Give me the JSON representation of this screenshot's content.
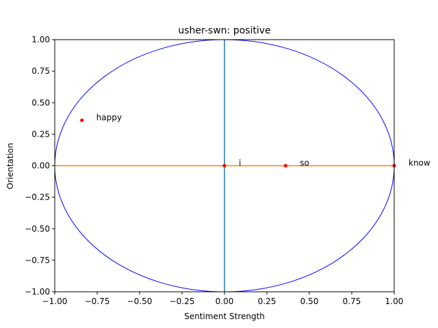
{
  "chart_data": {
    "type": "scatter",
    "title": "usher-swn: positive",
    "xlabel": "Sentiment Strength",
    "ylabel": "Orientation",
    "xlim": [
      -1.0,
      1.0
    ],
    "ylim": [
      -1.0,
      1.0
    ],
    "xticks": [
      "−1.00",
      "−0.75",
      "−0.50",
      "−0.25",
      "0.00",
      "0.25",
      "0.50",
      "0.75",
      "1.00"
    ],
    "yticks": [
      "−1.00",
      "−0.75",
      "−0.50",
      "−0.25",
      "0.00",
      "0.25",
      "0.50",
      "0.75",
      "1.00"
    ],
    "grid": false,
    "circle": {
      "center": [
        0,
        0
      ],
      "radius": 1,
      "color": "#0000ff"
    },
    "reference_lines": {
      "vertical": {
        "x": 0,
        "color": "#1f77b4"
      },
      "horizontal": {
        "y": 0,
        "color": "#ff7f0e"
      }
    },
    "points": [
      {
        "label": "happy",
        "x": -0.84,
        "y": 0.36
      },
      {
        "label": "i",
        "x": 0.0,
        "y": 0.0
      },
      {
        "label": "so",
        "x": 0.36,
        "y": 0.0
      },
      {
        "label": "know",
        "x": 1.0,
        "y": 0.0
      }
    ],
    "point_color": "#ff0000"
  }
}
